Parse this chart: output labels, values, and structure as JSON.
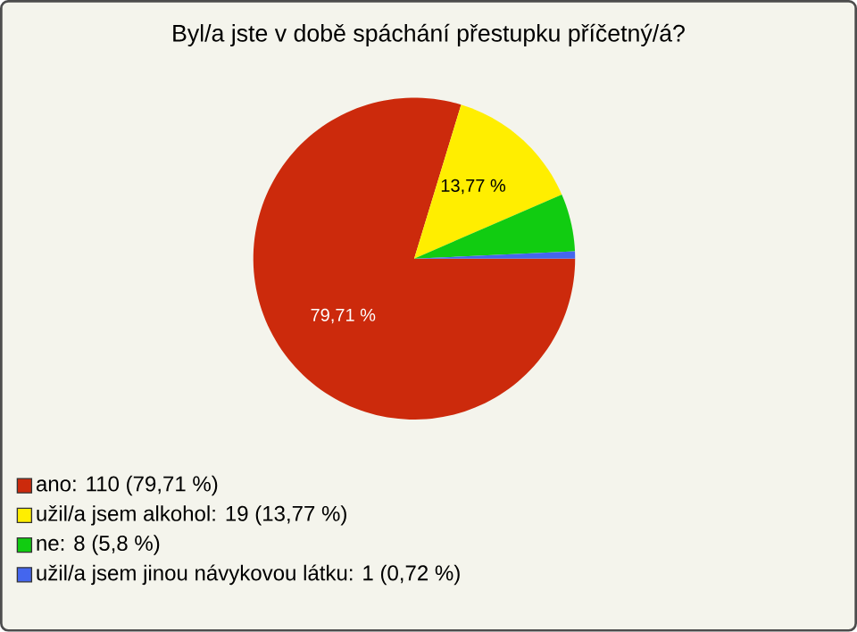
{
  "chart_data": {
    "type": "pie",
    "title": "Byl/a jste v době spáchání přestupku příčetný/á?",
    "categories": [
      "ano: 110 (79,71 %)",
      "užil/a jsem alkohol: 19 (13,77 %)",
      "ne: 8 (5,8 %)",
      "užil/a jsem jinou návykovou látku: 1 (0,72 %)"
    ],
    "values": [
      79.71,
      13.77,
      5.8,
      0.72
    ],
    "colors": [
      "#cc2a0c",
      "#ffee00",
      "#11cc11",
      "#4466ee"
    ],
    "value_labels": [
      "79,71 %",
      "13,77 %",
      null,
      null
    ],
    "legend": "bottom"
  }
}
